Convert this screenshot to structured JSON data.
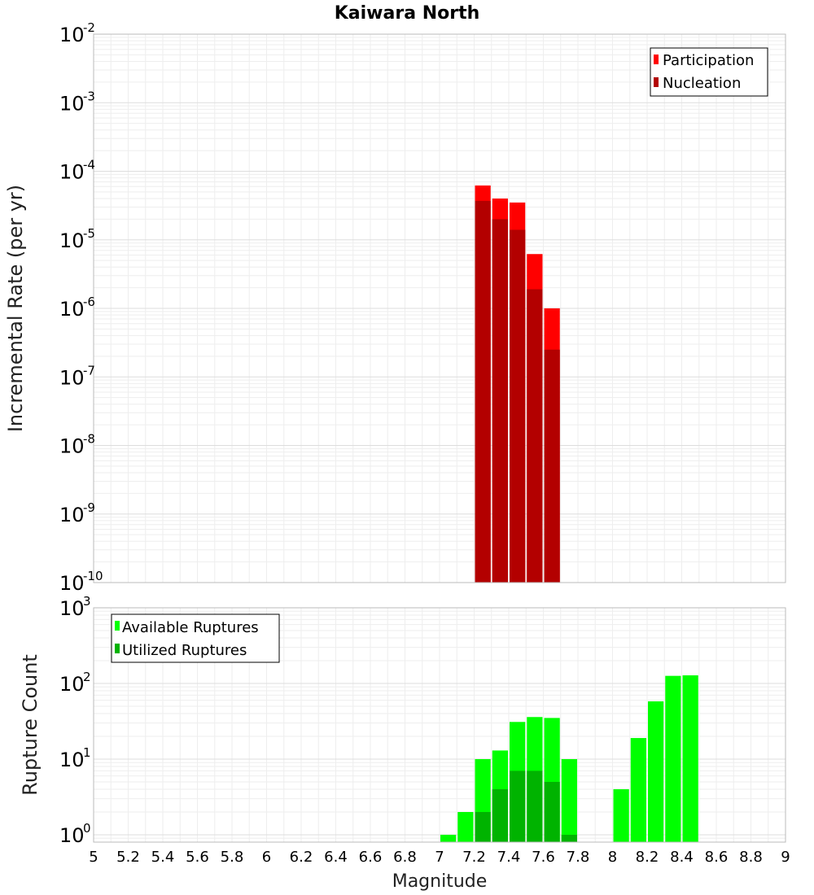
{
  "chart_data": [
    {
      "type": "bar",
      "title": "Kaiwara North",
      "xlabel": "",
      "ylabel": "Incremental Rate (per yr)",
      "yscale": "log",
      "ylim": [
        1e-10,
        0.01
      ],
      "xlim": [
        5,
        9
      ],
      "grid": true,
      "legend_position": "top-right",
      "x": [
        7.25,
        7.35,
        7.45,
        7.55,
        7.65
      ],
      "series": [
        {
          "name": "Participation",
          "color": "#ff0000",
          "values": [
            6.2e-05,
            4e-05,
            3.5e-05,
            6.2e-06,
            1e-06
          ]
        },
        {
          "name": "Nucleation",
          "color": "#b30000",
          "values": [
            3.7e-05,
            2e-05,
            1.4e-05,
            1.9e-06,
            2.5e-07
          ]
        }
      ]
    },
    {
      "type": "bar",
      "title": "",
      "xlabel": "Magnitude",
      "ylabel": "Rupture Count",
      "yscale": "log",
      "ylim": [
        0.8,
        1000
      ],
      "xlim": [
        5,
        9
      ],
      "xticks": [
        "5",
        "5.2",
        "5.4",
        "5.6",
        "5.8",
        "6",
        "6.2",
        "6.4",
        "6.6",
        "6.8",
        "7",
        "7.2",
        "7.4",
        "7.6",
        "7.8",
        "8",
        "8.2",
        "8.4",
        "8.6",
        "8.8",
        "9"
      ],
      "grid": true,
      "legend_position": "top-left",
      "x": [
        7.05,
        7.15,
        7.25,
        7.35,
        7.45,
        7.55,
        7.65,
        7.75,
        8.05,
        8.15,
        8.25,
        8.35,
        8.45
      ],
      "series": [
        {
          "name": "Available Ruptures",
          "color": "#00ff00",
          "values": [
            1,
            2,
            10,
            13,
            31,
            36,
            35,
            10,
            4,
            19,
            58,
            126,
            128
          ]
        },
        {
          "name": "Utilized Ruptures",
          "color": "#00b300",
          "values": [
            0,
            0,
            2,
            4,
            7,
            7,
            5,
            1,
            0,
            0,
            0,
            0,
            0
          ]
        }
      ]
    }
  ]
}
